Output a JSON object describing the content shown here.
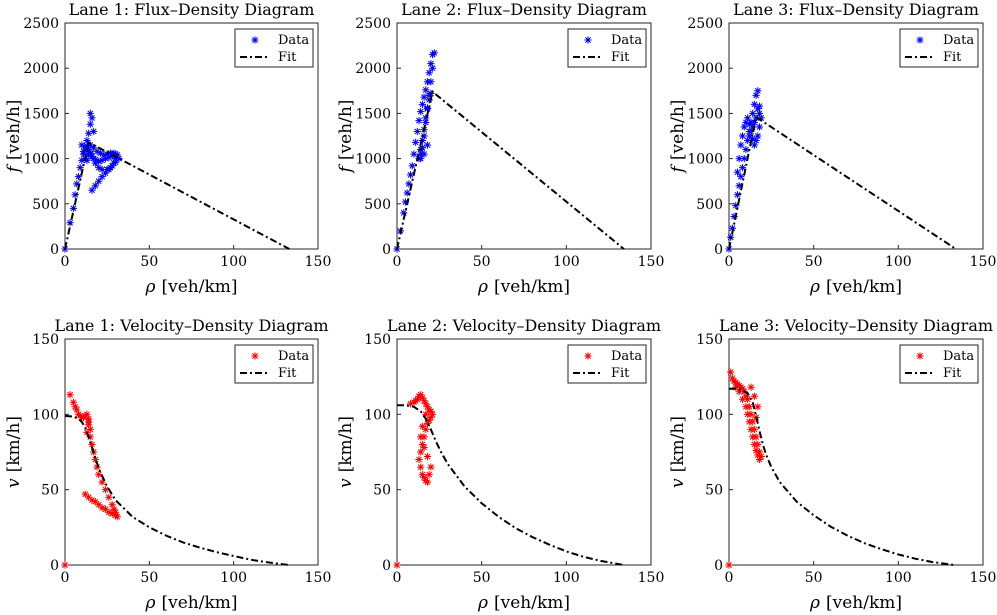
{
  "chart_data": [
    {
      "type": "scatter",
      "title": "Lane 1: Flux–Density Diagram",
      "xlabel_symbol": "ρ",
      "xlabel_unit": "[veh/km]",
      "ylabel_symbol": "f",
      "ylabel_unit": "[veh/h]",
      "xlim": [
        0,
        150
      ],
      "ylim": [
        0,
        2500
      ],
      "xticks": [
        0,
        50,
        100,
        150
      ],
      "yticks": [
        0,
        500,
        1000,
        1500,
        2000,
        2500
      ],
      "legend": {
        "position": "top-right",
        "entries": [
          "Data",
          "Fit"
        ]
      },
      "marker_color": "#0000ff",
      "fit": {
        "x": [
          0,
          14,
          133
        ],
        "y": [
          0,
          1180,
          0
        ]
      },
      "data": {
        "x": [
          0,
          3,
          5,
          6,
          7,
          8,
          9,
          10,
          11,
          12,
          13,
          14,
          15,
          15,
          16,
          17,
          15,
          14,
          13,
          12,
          11,
          10,
          13,
          15,
          17,
          18,
          20,
          22,
          25,
          27,
          29,
          30,
          30,
          28,
          26,
          24,
          22,
          20,
          18,
          16,
          15,
          14,
          13,
          16,
          18,
          20,
          22,
          24,
          26,
          28,
          30,
          32,
          31,
          29,
          27,
          25,
          23,
          21,
          19,
          17
        ],
        "y": [
          0,
          290,
          450,
          600,
          720,
          800,
          900,
          980,
          1050,
          1120,
          1200,
          1280,
          1380,
          1500,
          1450,
          1300,
          1150,
          1050,
          980,
          1000,
          1080,
          1150,
          1100,
          1050,
          1000,
          950,
          900,
          880,
          880,
          900,
          950,
          1000,
          1050,
          1030,
          1010,
          1000,
          980,
          970,
          990,
          1020,
          1060,
          1100,
          1140,
          650,
          700,
          750,
          800,
          840,
          880,
          920,
          960,
          1000,
          1040,
          1060,
          1060,
          1050,
          1040,
          1060,
          1080,
          1120
        ]
      }
    },
    {
      "type": "scatter",
      "title": "Lane 2: Flux–Density Diagram",
      "xlabel_symbol": "ρ",
      "xlabel_unit": "[veh/km]",
      "ylabel_symbol": "f",
      "ylabel_unit": "[veh/h]",
      "xlim": [
        0,
        150
      ],
      "ylim": [
        0,
        2500
      ],
      "xticks": [
        0,
        50,
        100,
        150
      ],
      "yticks": [
        0,
        500,
        1000,
        1500,
        2000,
        2500
      ],
      "legend": {
        "position": "top-right",
        "entries": [
          "Data",
          "Fit"
        ]
      },
      "marker_color": "#0000ff",
      "fit": {
        "x": [
          0,
          21,
          134
        ],
        "y": [
          0,
          1740,
          0
        ]
      },
      "data": {
        "x": [
          0,
          2,
          4,
          5,
          6,
          7,
          8,
          9,
          10,
          11,
          12,
          13,
          14,
          15,
          16,
          17,
          18,
          19,
          20,
          21,
          22,
          21,
          20,
          19,
          18,
          17,
          16,
          15,
          14,
          13,
          14,
          15,
          16,
          17,
          18,
          19,
          20,
          18,
          16,
          14
        ],
        "y": [
          0,
          200,
          400,
          520,
          620,
          720,
          820,
          920,
          1050,
          1180,
          1300,
          1420,
          1520,
          1600,
          1680,
          1760,
          1850,
          1950,
          2050,
          2150,
          2170,
          2000,
          1850,
          1700,
          1550,
          1400,
          1250,
          1120,
          1050,
          1000,
          1100,
          1200,
          1320,
          1450,
          1560,
          1650,
          1720,
          1150,
          1050,
          1000
        ]
      }
    },
    {
      "type": "scatter",
      "title": "Lane 3: Flux–Density Diagram",
      "xlabel_symbol": "ρ",
      "xlabel_unit": "[veh/km]",
      "ylabel_symbol": "f",
      "ylabel_unit": "[veh/h]",
      "xlim": [
        0,
        150
      ],
      "ylim": [
        0,
        2500
      ],
      "xticks": [
        0,
        50,
        100,
        150
      ],
      "yticks": [
        0,
        500,
        1000,
        1500,
        2000,
        2500
      ],
      "legend": {
        "position": "top-right",
        "entries": [
          "Data",
          "Fit"
        ]
      },
      "marker_color": "#0000ff",
      "fit": {
        "x": [
          0,
          16,
          134
        ],
        "y": [
          0,
          1460,
          0
        ]
      },
      "data": {
        "x": [
          0,
          1,
          2,
          3,
          4,
          5,
          6,
          7,
          8,
          9,
          10,
          11,
          12,
          13,
          14,
          15,
          16,
          17,
          18,
          19,
          18,
          17,
          16,
          15,
          14,
          13,
          12,
          11,
          10,
          9,
          8,
          7,
          6,
          5,
          12,
          14,
          16,
          18,
          17,
          15
        ],
        "y": [
          0,
          130,
          230,
          360,
          480,
          600,
          700,
          800,
          900,
          1000,
          1100,
          1200,
          1300,
          1400,
          1500,
          1600,
          1700,
          1750,
          1580,
          1450,
          1350,
          1250,
          1200,
          1150,
          1220,
          1300,
          1380,
          1450,
          1400,
          1350,
          1250,
          1150,
          1000,
          850,
          1250,
          1350,
          1450,
          1500,
          1550,
          1400
        ]
      }
    },
    {
      "type": "scatter",
      "title": "Lane 1: Velocity–Density Diagram",
      "xlabel_symbol": "ρ",
      "xlabel_unit": "[veh/km]",
      "ylabel_symbol": "v",
      "ylabel_unit": "[km/h]",
      "xlim": [
        0,
        150
      ],
      "ylim": [
        0,
        150
      ],
      "xticks": [
        0,
        50,
        100,
        150
      ],
      "yticks": [
        0,
        50,
        100,
        150
      ],
      "legend": {
        "position": "top-right",
        "entries": [
          "Data",
          "Fit"
        ]
      },
      "marker_color": "#ff0000",
      "fit": {
        "x": [
          0,
          5,
          8,
          10,
          12,
          14,
          16,
          18,
          20,
          25,
          30,
          40,
          50,
          60,
          70,
          80,
          90,
          100,
          110,
          120,
          133
        ],
        "y": [
          99,
          98.5,
          97,
          95,
          91,
          85,
          78,
          71,
          64,
          52,
          43,
          32,
          25,
          19.5,
          15,
          11.5,
          8.5,
          6,
          3.5,
          1.8,
          0
        ]
      },
      "data": {
        "x": [
          0,
          3,
          5,
          6,
          7,
          8,
          9,
          10,
          11,
          12,
          13,
          14,
          14,
          15,
          15,
          16,
          17,
          18,
          19,
          20,
          22,
          24,
          26,
          28,
          29,
          30,
          31,
          12,
          14,
          16,
          18,
          20,
          22,
          24,
          26,
          28,
          30,
          13,
          14
        ],
        "y": [
          0,
          113,
          108,
          105,
          103,
          100,
          99,
          98,
          98,
          99,
          100,
          97,
          95,
          90,
          85,
          80,
          75,
          70,
          65,
          60,
          55,
          50,
          45,
          40,
          37,
          35,
          32,
          47,
          45,
          43,
          42,
          40,
          38,
          37,
          35,
          34,
          33,
          88,
          93
        ]
      }
    },
    {
      "type": "scatter",
      "title": "Lane 2: Velocity–Density Diagram",
      "xlabel_symbol": "ρ",
      "xlabel_unit": "[veh/km]",
      "ylabel_symbol": "v",
      "ylabel_unit": "[km/h]",
      "xlim": [
        0,
        150
      ],
      "ylim": [
        0,
        150
      ],
      "xticks": [
        0,
        50,
        100,
        150
      ],
      "yticks": [
        0,
        50,
        100,
        150
      ],
      "legend": {
        "position": "top-right",
        "entries": [
          "Data",
          "Fit"
        ]
      },
      "marker_color": "#ff0000",
      "fit": {
        "x": [
          0,
          5,
          10,
          14,
          17,
          20,
          23,
          26,
          30,
          40,
          50,
          60,
          70,
          80,
          90,
          100,
          110,
          120,
          134
        ],
        "y": [
          106,
          106,
          105,
          102,
          97,
          90,
          82,
          75,
          67,
          52,
          41,
          32,
          24.5,
          18.5,
          13.5,
          9,
          5.5,
          2.8,
          0
        ]
      },
      "data": {
        "x": [
          0,
          8,
          10,
          11,
          12,
          13,
          14,
          15,
          16,
          17,
          18,
          19,
          20,
          21,
          20,
          19,
          18,
          17,
          16,
          15,
          14,
          13,
          14,
          15,
          16,
          17,
          18,
          19,
          20,
          18,
          16,
          14,
          15,
          17
        ],
        "y": [
          0,
          107,
          108,
          109,
          110,
          112,
          113,
          111,
          109,
          107,
          105,
          103,
          102,
          100,
          98,
          96,
          94,
          90,
          85,
          80,
          75,
          70,
          65,
          60,
          58,
          56,
          55,
          60,
          65,
          72,
          78,
          85,
          92,
          100
        ]
      }
    },
    {
      "type": "scatter",
      "title": "Lane 3: Velocity–Density Diagram",
      "xlabel_symbol": "ρ",
      "xlabel_unit": "[veh/km]",
      "ylabel_symbol": "v",
      "ylabel_unit": "[km/h]",
      "xlim": [
        0,
        150
      ],
      "ylim": [
        0,
        150
      ],
      "xticks": [
        0,
        50,
        100,
        150
      ],
      "yticks": [
        0,
        50,
        100,
        150
      ],
      "legend": {
        "position": "top-right",
        "entries": [
          "Data",
          "Fit"
        ]
      },
      "marker_color": "#ff0000",
      "fit": {
        "x": [
          0,
          4,
          8,
          11,
          14,
          16,
          18,
          20,
          22,
          25,
          30,
          40,
          50,
          60,
          70,
          80,
          90,
          100,
          110,
          120,
          133
        ],
        "y": [
          117,
          117,
          116,
          114,
          108,
          99,
          89,
          80,
          73,
          65,
          55,
          42,
          33,
          25.5,
          19.5,
          14.5,
          10.5,
          7,
          4.2,
          2,
          0
        ]
      },
      "data": {
        "x": [
          0,
          1,
          2,
          3,
          4,
          5,
          6,
          7,
          8,
          9,
          10,
          11,
          12,
          13,
          14,
          15,
          16,
          17,
          18,
          19,
          18,
          17,
          16,
          15,
          14,
          13,
          12,
          11,
          10,
          8,
          6,
          4,
          13,
          15,
          17,
          16
        ],
        "y": [
          0,
          128,
          124,
          122,
          121,
          120,
          119,
          118,
          117,
          115,
          112,
          110,
          105,
          100,
          95,
          90,
          85,
          80,
          75,
          72,
          70,
          73,
          76,
          80,
          85,
          90,
          95,
          100,
          105,
          110,
          115,
          118,
          118,
          112,
          105,
          98
        ]
      }
    }
  ]
}
